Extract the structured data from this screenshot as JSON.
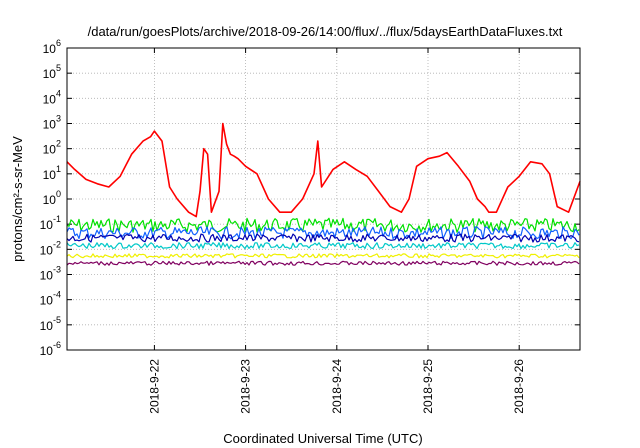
{
  "chart_data": {
    "type": "line",
    "title": "/data/run/goesPlots/archive/2018-09-26/14:00/flux/../flux/5daysEarthDataFluxes.txt",
    "xlabel": "Coordinated Universal Time (UTC)",
    "ylabel": "protons/cm²-s-sr-MeV",
    "yscale": "log",
    "ylim": [
      1e-06,
      1000000.0
    ],
    "xlim": [
      "2018-09-21 01:00",
      "2018-09-26 16:00"
    ],
    "x_ticks": [
      "2018-9-22",
      "2018-9-23",
      "2018-9-24",
      "2018-9-25",
      "2018-9-26"
    ],
    "y_ticks": [
      {
        "base": "10",
        "exp": "-6"
      },
      {
        "base": "10",
        "exp": "-5"
      },
      {
        "base": "10",
        "exp": "-4"
      },
      {
        "base": "10",
        "exp": "-3"
      },
      {
        "base": "10",
        "exp": "-2"
      },
      {
        "base": "10",
        "exp": "-1"
      },
      {
        "base": "10",
        "exp": "0"
      },
      {
        "base": "10",
        "exp": "1"
      },
      {
        "base": "10",
        "exp": "2"
      },
      {
        "base": "10",
        "exp": "3"
      },
      {
        "base": "10",
        "exp": "4"
      },
      {
        "base": "10",
        "exp": "5"
      },
      {
        "base": "10",
        "exp": "6"
      }
    ],
    "grid": true,
    "legend": "none",
    "series": [
      {
        "color": "#ff0000",
        "x": [
          "2018-09-21 01:00",
          "2018-09-21 03:00",
          "2018-09-21 06:00",
          "2018-09-21 09:00",
          "2018-09-21 12:00",
          "2018-09-21 15:00",
          "2018-09-21 18:00",
          "2018-09-21 21:00",
          "2018-09-21 23:00",
          "2018-09-22 00:00",
          "2018-09-22 02:00",
          "2018-09-22 04:00",
          "2018-09-22 06:00",
          "2018-09-22 09:00",
          "2018-09-22 11:00",
          "2018-09-22 12:00",
          "2018-09-22 13:00",
          "2018-09-22 14:00",
          "2018-09-22 15:00",
          "2018-09-22 17:00",
          "2018-09-22 18:00",
          "2018-09-22 19:00",
          "2018-09-22 20:00",
          "2018-09-22 21:00",
          "2018-09-22 22:00",
          "2018-09-23 00:00",
          "2018-09-23 03:00",
          "2018-09-23 06:00",
          "2018-09-23 09:00",
          "2018-09-23 12:00",
          "2018-09-23 15:00",
          "2018-09-23 18:00",
          "2018-09-23 19:00",
          "2018-09-23 20:00",
          "2018-09-23 23:00",
          "2018-09-24 02:00",
          "2018-09-24 05:00",
          "2018-09-24 08:00",
          "2018-09-24 11:00",
          "2018-09-24 14:00",
          "2018-09-24 17:00",
          "2018-09-24 19:00",
          "2018-09-24 21:00",
          "2018-09-25 00:00",
          "2018-09-25 03:00",
          "2018-09-25 05:00",
          "2018-09-25 08:00",
          "2018-09-25 11:00",
          "2018-09-25 13:00",
          "2018-09-25 15:00",
          "2018-09-25 16:00",
          "2018-09-25 18:00",
          "2018-09-25 21:00",
          "2018-09-26 00:00",
          "2018-09-26 03:00",
          "2018-09-26 06:00",
          "2018-09-26 08:00",
          "2018-09-26 10:00",
          "2018-09-26 13:00",
          "2018-09-26 16:00"
        ],
        "values": [
          30,
          15,
          6,
          4,
          3,
          8,
          60,
          200,
          300,
          500,
          200,
          3,
          1,
          0.3,
          0.2,
          2,
          100,
          60,
          0.3,
          2,
          1000,
          150,
          60,
          50,
          40,
          20,
          10,
          1,
          0.3,
          0.3,
          1,
          10,
          200,
          3,
          15,
          30,
          15,
          8,
          2,
          0.5,
          0.3,
          1,
          20,
          40,
          50,
          70,
          20,
          5,
          1,
          0.5,
          0.3,
          0.3,
          3,
          8,
          30,
          25,
          10,
          0.5,
          0.3,
          5
        ]
      },
      {
        "color": "#00e000",
        "x": [
          "2018-09-21 01:00",
          "2018-09-22 00:00",
          "2018-09-23 00:00",
          "2018-09-24 00:00",
          "2018-09-25 00:00",
          "2018-09-26 00:00",
          "2018-09-26 16:00"
        ],
        "values": [
          0.09,
          0.09,
          0.09,
          0.09,
          0.09,
          0.09,
          0.09
        ]
      },
      {
        "color": "#1060ff",
        "x": [
          "2018-09-21 01:00",
          "2018-09-22 00:00",
          "2018-09-23 00:00",
          "2018-09-24 00:00",
          "2018-09-25 00:00",
          "2018-09-26 00:00",
          "2018-09-26 16:00"
        ],
        "values": [
          0.045,
          0.045,
          0.045,
          0.045,
          0.045,
          0.045,
          0.045
        ]
      },
      {
        "color": "#0000b0",
        "x": [
          "2018-09-21 01:00",
          "2018-09-22 00:00",
          "2018-09-23 00:00",
          "2018-09-24 00:00",
          "2018-09-25 00:00",
          "2018-09-26 00:00",
          "2018-09-26 16:00"
        ],
        "values": [
          0.028,
          0.028,
          0.028,
          0.028,
          0.028,
          0.028,
          0.028
        ]
      },
      {
        "color": "#00c8c8",
        "x": [
          "2018-09-21 01:00",
          "2018-09-22 00:00",
          "2018-09-23 00:00",
          "2018-09-24 00:00",
          "2018-09-25 00:00",
          "2018-09-26 00:00",
          "2018-09-26 16:00"
        ],
        "values": [
          0.014,
          0.014,
          0.014,
          0.014,
          0.014,
          0.014,
          0.014
        ]
      },
      {
        "color": "#f0f000",
        "x": [
          "2018-09-21 01:00",
          "2018-09-22 00:00",
          "2018-09-23 00:00",
          "2018-09-24 00:00",
          "2018-09-25 00:00",
          "2018-09-26 00:00",
          "2018-09-26 16:00"
        ],
        "values": [
          0.0055,
          0.0055,
          0.0055,
          0.0055,
          0.0055,
          0.0055,
          0.0055
        ]
      },
      {
        "color": "#800060",
        "x": [
          "2018-09-21 01:00",
          "2018-09-22 00:00",
          "2018-09-23 00:00",
          "2018-09-24 00:00",
          "2018-09-25 00:00",
          "2018-09-26 00:00",
          "2018-09-26 16:00"
        ],
        "values": [
          0.0028,
          0.0028,
          0.0028,
          0.0028,
          0.0028,
          0.0028,
          0.0028
        ]
      }
    ]
  }
}
